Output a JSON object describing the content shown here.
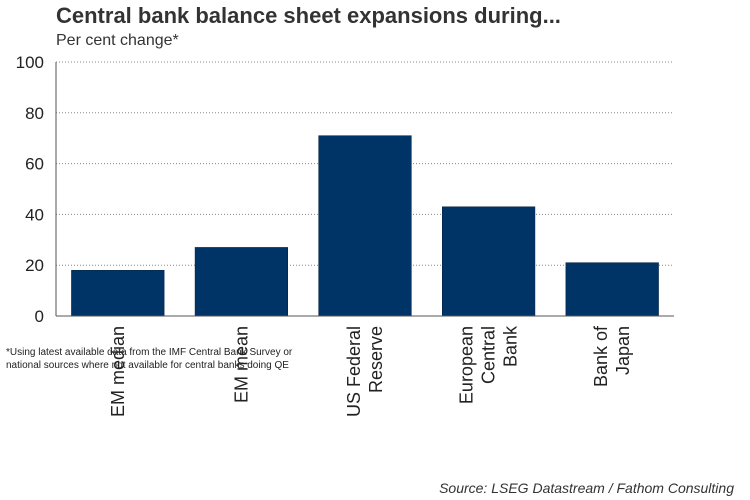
{
  "chart_data": {
    "type": "bar",
    "title": "Central bank balance sheet expansions during...",
    "subtitle": "Per cent change*",
    "categories": [
      "EM median",
      "EM mean",
      "US Federal Reserve",
      "European Central Bank",
      "Bank of Japan"
    ],
    "values": [
      18,
      27,
      71,
      43,
      21
    ],
    "ylim": [
      0,
      100
    ],
    "yticks": [
      0,
      20,
      40,
      60,
      80,
      100
    ],
    "grid": true,
    "bar_color": "#003366",
    "footnote": "*Using latest available data from the IMF Central Bank Survey or national sources where not available for central banks doing QE",
    "source": "Source: LSEG Datastream / Fathom Consulting"
  }
}
